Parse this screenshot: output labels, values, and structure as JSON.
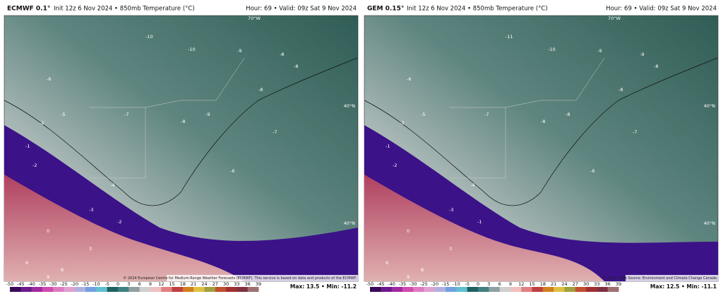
{
  "panels": [
    {
      "model": "ECMWF 0.1°",
      "init": "Init 12z 6 Nov 2024 • 850mb Temperature (°C)",
      "valid": "Hour: 69 • Valid: 09z Sat 9 Nov 2024",
      "credit": "© 2024 European Centre for Medium-Range Weather Forecasts (ECMWF). This service is based on data and products of the ECMWF.",
      "max_min": "Max: 13.5 • Min: -11.2",
      "lon_label": "70°W",
      "lat_labels": [
        "40°N",
        "40°N"
      ],
      "map_labels": [
        -10,
        -10,
        -9,
        -8,
        -8,
        -6,
        -5,
        -2,
        -1,
        -2,
        -7,
        -8,
        -9,
        -8,
        -7,
        -6,
        -4,
        -3,
        -2,
        0,
        3,
        6,
        8,
        9
      ]
    },
    {
      "model": "GEM 0.15°",
      "init": "Init 12z 6 Nov 2024 • 850mb Temperature (°C)",
      "valid": "Hour: 69 • Valid: 09z Sat 9 Nov 2024",
      "credit": "© 2024. Data Source: Environment and Climate Change Canada",
      "max_min": "Max: 12.5 • Min: -11.1",
      "lon_label": "70°W",
      "lat_labels": [
        "40°N",
        "40°N"
      ],
      "map_labels": [
        -11,
        -10,
        -9,
        -9,
        -8,
        -6,
        -5,
        -3,
        -1,
        -2,
        -7,
        -8,
        -8,
        -8,
        -7,
        -6,
        -4,
        -3,
        -1,
        0,
        3,
        6,
        8,
        9
      ]
    }
  ],
  "colorbar_ticks": [
    -50,
    -45,
    -40,
    -35,
    -30,
    -25,
    -20,
    -15,
    -10,
    -5,
    0,
    3,
    6,
    9,
    12,
    15,
    18,
    21,
    24,
    27,
    30,
    33,
    36,
    39
  ]
}
